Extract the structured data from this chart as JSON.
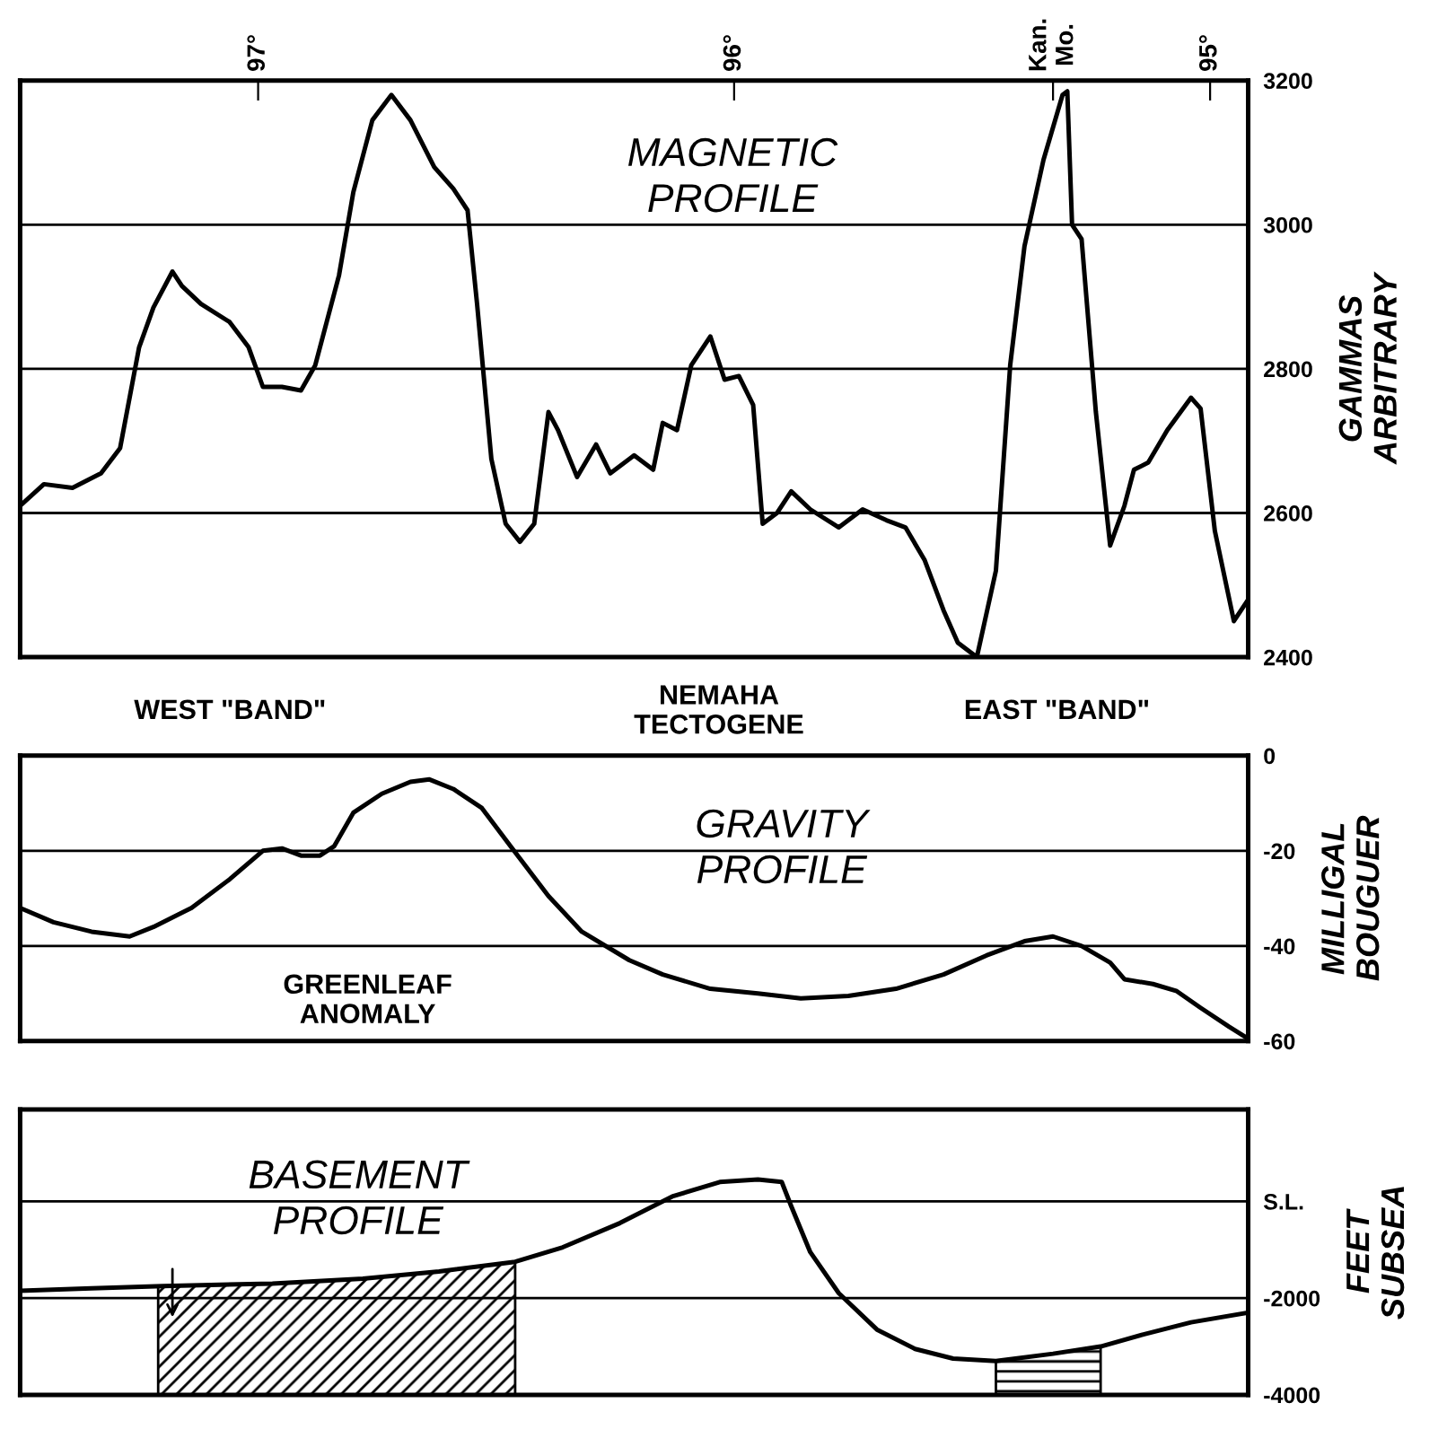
{
  "chart_data": [
    {
      "type": "line",
      "title": "MAGNETIC\nPROFILE",
      "ylabel": "GAMMAS\nARBITRARY",
      "grid": "y",
      "annotations": [
        "WEST \"BAND\"",
        "NEMAHA\nTECTOGENE",
        "EAST \"BAND\""
      ],
      "xlim": [
        97.5,
        94.92
      ],
      "xticks": [
        {
          "value": 97,
          "label": "97°"
        },
        {
          "value": 96,
          "label": "96°"
        },
        {
          "value": 95.33,
          "label": "Kan.\nMo."
        },
        {
          "value": 95,
          "label": "95°"
        }
      ],
      "ylim": [
        2400,
        3200
      ],
      "yticks": [
        2400,
        2600,
        2800,
        3000,
        3200
      ],
      "x": [
        97.5,
        97.45,
        97.39,
        97.33,
        97.29,
        97.25,
        97.22,
        97.18,
        97.16,
        97.12,
        97.06,
        97.02,
        96.99,
        96.95,
        96.91,
        96.88,
        96.83,
        96.8,
        96.76,
        96.72,
        96.68,
        96.63,
        96.59,
        96.56,
        96.54,
        96.51,
        96.48,
        96.45,
        96.42,
        96.39,
        96.37,
        96.33,
        96.29,
        96.26,
        96.21,
        96.17,
        96.15,
        96.12,
        96.09,
        96.05,
        96.02,
        95.99,
        95.96,
        95.94,
        95.91,
        95.88,
        95.84,
        95.78,
        95.73,
        95.68,
        95.64,
        95.6,
        95.56,
        95.53,
        95.49,
        95.45,
        95.42,
        95.39,
        95.35,
        95.31,
        95.3,
        95.29,
        95.27,
        95.24,
        95.21,
        95.18,
        95.16,
        95.13,
        95.09,
        95.04,
        95.02,
        94.99,
        94.95,
        94.92
      ],
      "series": [
        {
          "color": "#000000",
          "values": [
            2610,
            2640,
            2635,
            2655,
            2690,
            2830,
            2885,
            2935,
            2915,
            2890,
            2865,
            2830,
            2775,
            2775,
            2770,
            2805,
            2930,
            3045,
            3145,
            3180,
            3145,
            3080,
            3050,
            3020,
            2890,
            2675,
            2585,
            2560,
            2585,
            2740,
            2715,
            2650,
            2695,
            2655,
            2680,
            2660,
            2725,
            2715,
            2805,
            2845,
            2785,
            2790,
            2750,
            2585,
            2600,
            2630,
            2605,
            2580,
            2605,
            2590,
            2580,
            2535,
            2465,
            2420,
            2400,
            2520,
            2805,
            2970,
            3090,
            3180,
            3185,
            3000,
            2980,
            2740,
            2555,
            2610,
            2660,
            2670,
            2715,
            2760,
            2745,
            2575,
            2450,
            2480
          ]
        }
      ]
    },
    {
      "type": "line",
      "title": "GRAVITY\nPROFILE",
      "ylabel": "MILLIGAL\nBOUGUER",
      "grid": "y",
      "tick_labels": "y",
      "annotations": [
        "GREENLEAF\nANOMALY"
      ],
      "xlim": [
        97.5,
        94.92
      ],
      "ylim": [
        -60,
        0
      ],
      "yticks": [
        -60,
        -40,
        -20,
        0
      ],
      "x": [
        97.5,
        97.43,
        97.35,
        97.27,
        97.22,
        97.14,
        97.06,
        96.99,
        96.95,
        96.91,
        96.87,
        96.84,
        96.8,
        96.74,
        96.68,
        96.64,
        96.59,
        96.53,
        96.47,
        96.39,
        96.32,
        96.22,
        96.15,
        96.05,
        95.95,
        95.86,
        95.76,
        95.66,
        95.56,
        95.47,
        95.39,
        95.33,
        95.27,
        95.21,
        95.18,
        95.12,
        95.07,
        95.02,
        94.96,
        94.92
      ],
      "series": [
        {
          "color": "#000000",
          "values": [
            -32,
            -35,
            -37,
            -38,
            -36,
            -32,
            -26,
            -20,
            -19.5,
            -21,
            -21,
            -19,
            -12,
            -8,
            -5.5,
            -5,
            -7,
            -11,
            -19,
            -29.5,
            -37,
            -43,
            -46,
            -49,
            -50,
            -51,
            -50.5,
            -49,
            -46,
            -42,
            -39,
            -38,
            -40,
            -43.5,
            -47,
            -48,
            -49.5,
            -53,
            -57,
            -59.5
          ]
        }
      ]
    },
    {
      "type": "line",
      "title": "BASEMENT\nPROFILE",
      "ylabel": "FEET\nSUBSEA",
      "grid": "y",
      "tick_labels": "y",
      "xlim": [
        97.5,
        94.92
      ],
      "ylim": [
        -4000,
        1900
      ],
      "yticks": [
        -4000,
        -2000,
        {
          "value": 0,
          "label": "S.L."
        }
      ],
      "bands": [
        {
          "axis": "x",
          "from": 97.21,
          "to": 96.46,
          "color": "#000000"
        },
        {
          "axis": "x",
          "from": 95.45,
          "to": 95.23,
          "color": "#000000"
        }
      ],
      "x": [
        97.5,
        97.35,
        97.2,
        96.97,
        96.78,
        96.62,
        96.46,
        96.36,
        96.24,
        96.13,
        96.03,
        95.95,
        95.9,
        95.88,
        95.84,
        95.78,
        95.7,
        95.62,
        95.54,
        95.45,
        95.33,
        95.23,
        95.14,
        95.04,
        94.92
      ],
      "series": [
        {
          "color": "#000000",
          "values": [
            -1850,
            -1800,
            -1750,
            -1700,
            -1600,
            -1450,
            -1250,
            -950,
            -450,
            100,
            400,
            450,
            400,
            -100,
            -1050,
            -1900,
            -2650,
            -3050,
            -3250,
            -3300,
            -3150,
            -3000,
            -2750,
            -2500,
            -2300
          ]
        }
      ]
    }
  ]
}
